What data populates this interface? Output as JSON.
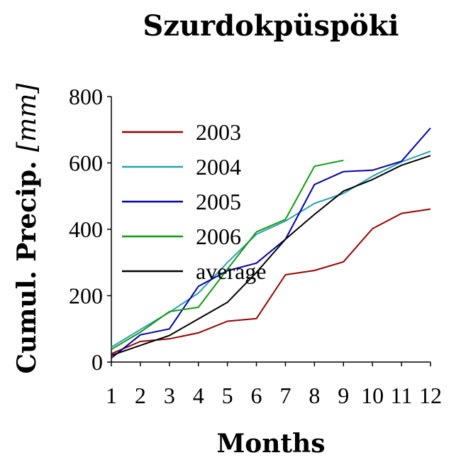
{
  "chart_data": {
    "type": "line",
    "title": "Szurdokpüspöki",
    "xlabel": "Months",
    "ylabel_main": "Cumul. Precip. ",
    "ylabel_unit": "[mm]",
    "x": [
      1,
      2,
      3,
      4,
      5,
      6,
      7,
      8,
      9,
      10,
      11,
      12
    ],
    "x_tick_labels": [
      "1",
      "2",
      "3",
      "4",
      "5",
      "6",
      "7",
      "8",
      "9",
      "10",
      "11",
      "12"
    ],
    "y_ticks": [
      0,
      200,
      400,
      600,
      800
    ],
    "y_tick_labels": [
      "0",
      "200",
      "400",
      "600",
      "800"
    ],
    "xlim": [
      1,
      12
    ],
    "ylim": [
      0,
      800
    ],
    "grid": false,
    "legend_position": "top-left",
    "series": [
      {
        "name": "2003",
        "color": "#990000",
        "values": [
          25,
          62,
          70,
          88,
          123,
          131,
          263,
          276,
          302,
          402,
          448,
          461
        ]
      },
      {
        "name": "2004",
        "color": "#2b9fb0",
        "values": [
          45,
          98,
          150,
          208,
          300,
          385,
          425,
          478,
          508,
          560,
          603,
          635
        ]
      },
      {
        "name": "2005",
        "color": "#0000aa",
        "values": [
          12,
          82,
          100,
          228,
          275,
          298,
          370,
          535,
          574,
          578,
          605,
          705
        ]
      },
      {
        "name": "2006",
        "color": "#109a10",
        "values": [
          38,
          90,
          152,
          165,
          280,
          392,
          430,
          590,
          608,
          null,
          null,
          null
        ]
      },
      {
        "name": "average",
        "color": "#000000",
        "values": [
          20,
          50,
          80,
          130,
          180,
          270,
          370,
          445,
          515,
          550,
          593,
          622
        ]
      }
    ]
  }
}
